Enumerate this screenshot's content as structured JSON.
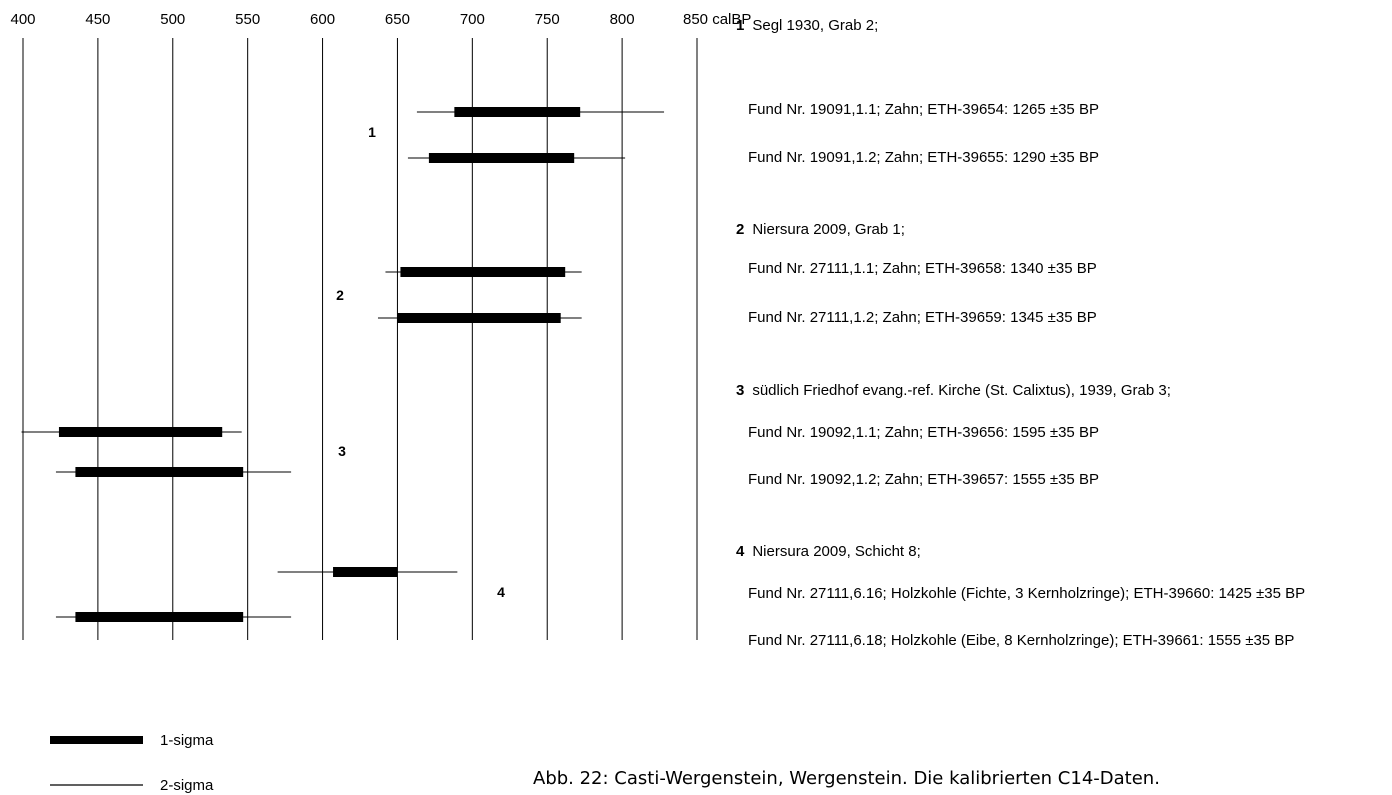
{
  "chart_data": {
    "type": "range-bar",
    "axis": {
      "ticks": [
        400,
        450,
        500,
        550,
        600,
        650,
        700,
        750,
        800,
        850
      ],
      "unit": "calBP",
      "range": [
        400,
        850
      ]
    },
    "groups": [
      {
        "number": "1",
        "site": "Segl 1930, Grab 2;",
        "samples": [
          {
            "label": "Fund Nr. 19091,1.1; Zahn; ETH-39654: 1265 ±35 BP",
            "sigma1": [
              688,
              772
            ],
            "sigma2": [
              663,
              828
            ]
          },
          {
            "label": "Fund Nr. 19091,1.2; Zahn; ETH-39655: 1290 ±35 BP",
            "sigma1": [
              671,
              768
            ],
            "sigma2": [
              657,
              802
            ]
          }
        ]
      },
      {
        "number": "2",
        "site": "Niersura 2009, Grab 1;",
        "samples": [
          {
            "label": "Fund Nr. 27111,1.1; Zahn; ETH-39658: 1340 ±35 BP",
            "sigma1": [
              652,
              762
            ],
            "sigma2": [
              642,
              773
            ]
          },
          {
            "label": "Fund Nr. 27111,1.2; Zahn; ETH-39659: 1345 ±35 BP",
            "sigma1": [
              650,
              759
            ],
            "sigma2": [
              637,
              773
            ]
          }
        ]
      },
      {
        "number": "3",
        "site": "südlich Friedhof evang.-ref. Kirche (St. Calixtus), 1939, Grab 3;",
        "samples": [
          {
            "label": "Fund Nr. 19092,1.1; Zahn; ETH-39656: 1595 ±35 BP",
            "sigma1": [
              424,
              533
            ],
            "sigma2": [
              399,
              546
            ]
          },
          {
            "label": "Fund Nr. 19092,1.2; Zahn; ETH-39657: 1555 ±35 BP",
            "sigma1": [
              435,
              547
            ],
            "sigma2": [
              422,
              579
            ]
          }
        ]
      },
      {
        "number": "4",
        "site": "Niersura 2009, Schicht 8;",
        "samples": [
          {
            "label": "Fund Nr. 27111,6.16; Holzkohle (Fichte, 3 Kernholzringe); ETH-39660: 1425 ±35 BP",
            "sigma1": [
              607,
              650
            ],
            "sigma2": [
              570,
              690
            ]
          },
          {
            "label": "Fund Nr. 27111,6.18; Holzkohle (Eibe, 8 Kernholzringe); ETH-39661: 1555 ±35 BP",
            "sigma1": [
              435,
              547
            ],
            "sigma2": [
              422,
              579
            ]
          }
        ]
      }
    ],
    "legend": {
      "sigma1": "1-sigma",
      "sigma2": "2-sigma"
    },
    "grid": true
  },
  "caption": "Abb. 22: Casti-Wergenstein, Wergenstein. Die kalibrierten C14-Daten."
}
